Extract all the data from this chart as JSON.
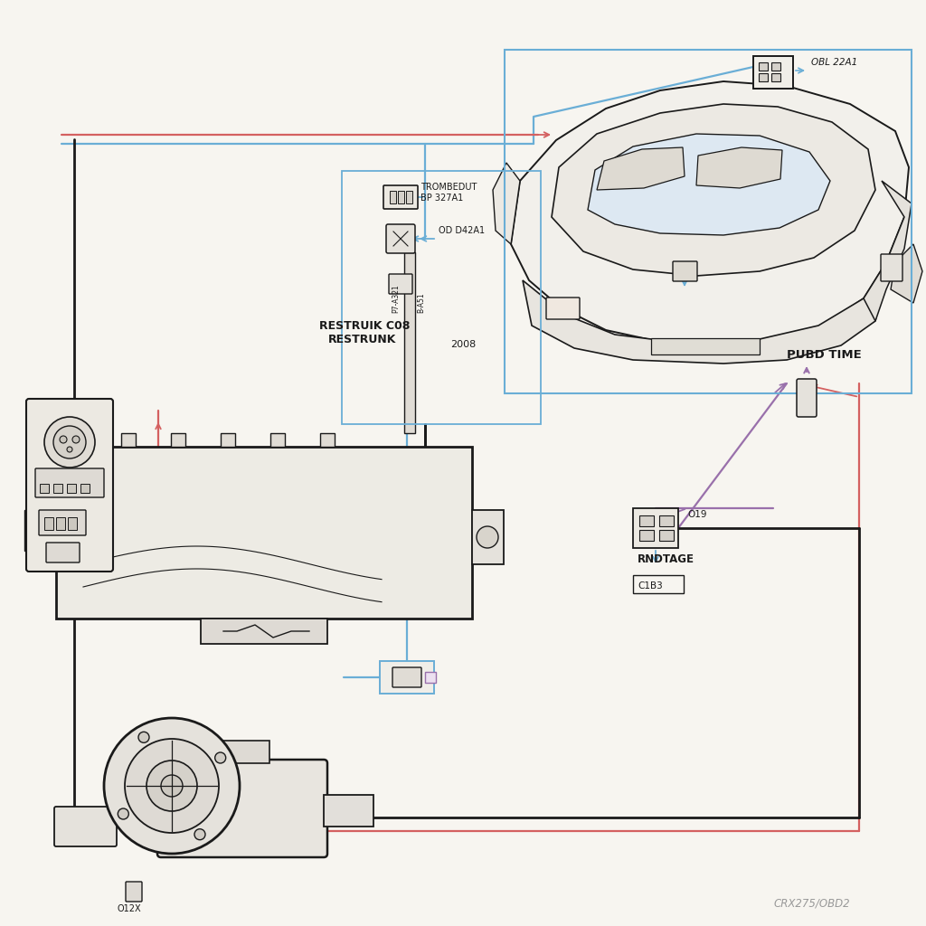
{
  "bg_color": "#f7f5f0",
  "paper_color": "#faf9f5",
  "bk": "#1a1a1a",
  "bl": "#6aaed6",
  "rd": "#d46060",
  "pu": "#9970ab",
  "watermark": "CRX275/OBD2",
  "labels": {
    "obl22a1": "OBL 22A1",
    "trombedut": "TROMBEDUT",
    "bp327a1": "BP 327A1",
    "od42a1": "OD D42A1",
    "restruik": "RESTRUIK C08",
    "restrunk": "RESTRUNK",
    "c2008": "2008",
    "rndtage": "RNDTAGE",
    "c1b3": "C1B3",
    "pubd_time": "PUBD TIME",
    "o19": "O19",
    "o12x": "O12X",
    "ba51": "B-A51",
    "p7a321": "P7-A321"
  },
  "wire_lw": 1.6,
  "wire_lw_thick": 2.0
}
